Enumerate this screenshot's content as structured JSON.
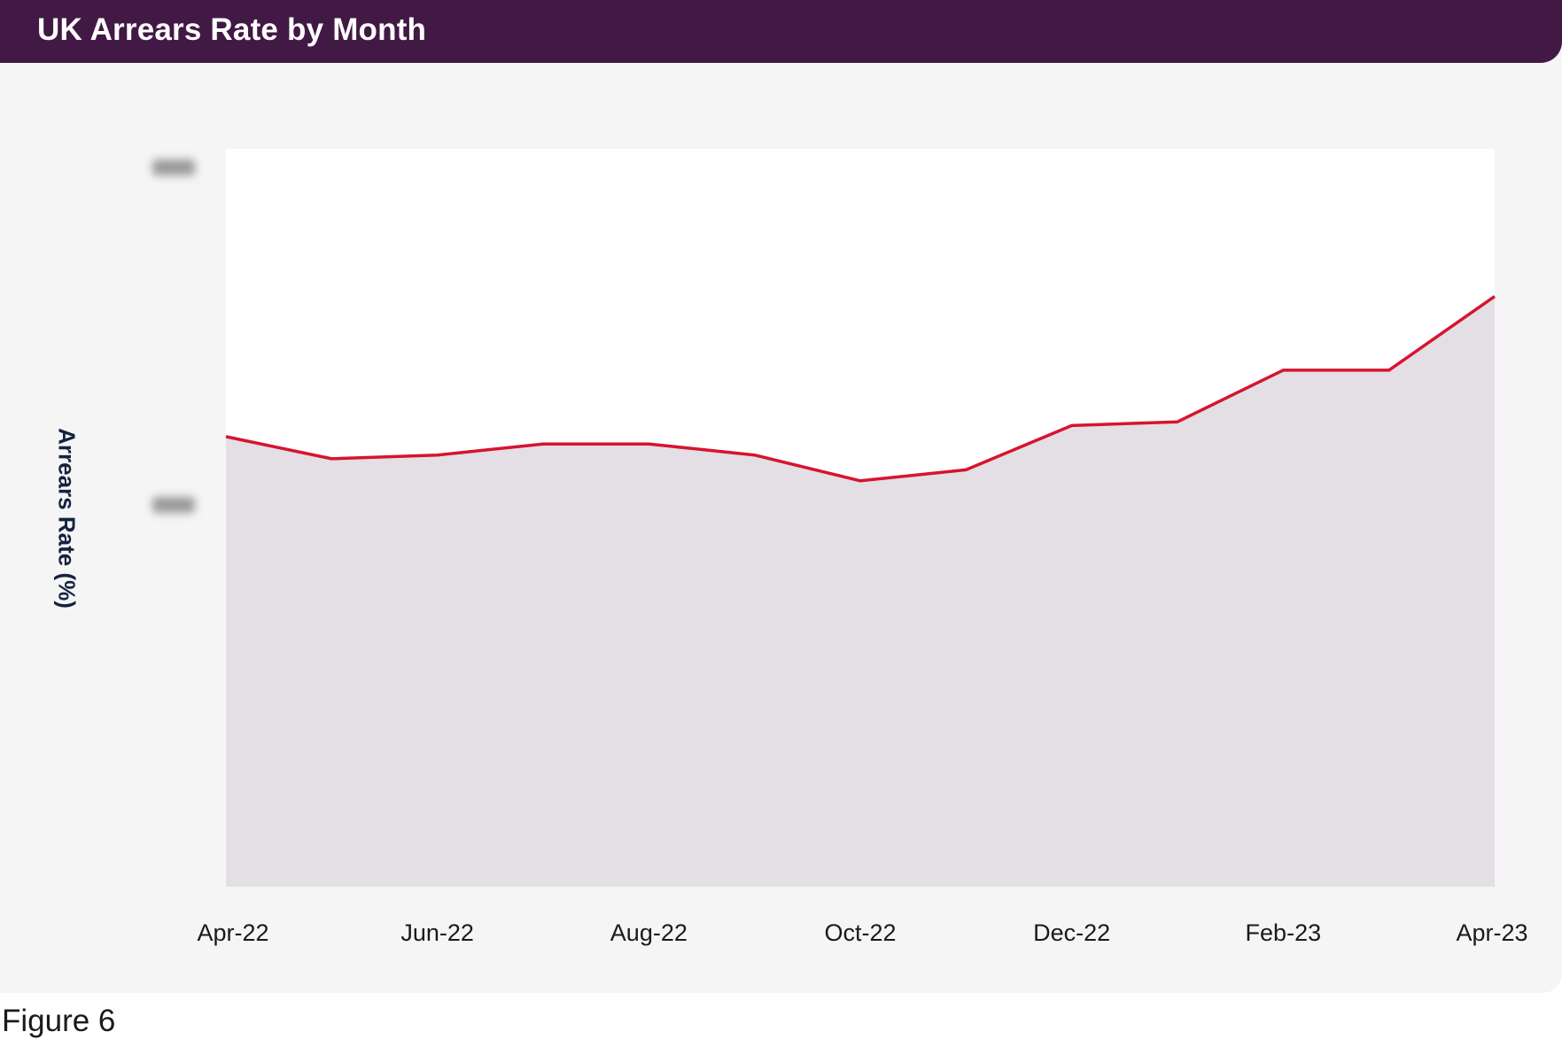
{
  "figure": {
    "caption": "Figure 6"
  },
  "colors": {
    "title_bar": "#421944",
    "line": "#d7142f",
    "area_fill": "#e3dfe5",
    "plot_bg": "#ffffff",
    "card_bg": "#f5f5f5"
  },
  "chart_data": {
    "type": "area",
    "title": "UK Arrears Rate by Month",
    "ylabel": "Arrears Rate (%)",
    "xlabel": "",
    "x_tick_labels": [
      "Apr-22",
      "Jun-22",
      "Aug-22",
      "Oct-22",
      "Dec-22",
      "Feb-23",
      "Apr-23"
    ],
    "y_tick_labels_obscured": true,
    "grid": "horizontal",
    "legend": "none",
    "series": [
      {
        "x": [
          "Apr-22",
          "May-22",
          "Jun-22",
          "Jul-22",
          "Aug-22",
          "Sep-22",
          "Oct-22",
          "Nov-22",
          "Dec-22",
          "Jan-23",
          "Feb-23",
          "Mar-23",
          "Apr-23"
        ],
        "values": [
          1.22,
          1.16,
          1.17,
          1.2,
          1.2,
          1.17,
          1.1,
          1.13,
          1.25,
          1.26,
          1.4,
          1.4,
          1.6
        ]
      }
    ],
    "ylim": [
      0,
      2
    ],
    "gridlines": [
      1
    ]
  }
}
